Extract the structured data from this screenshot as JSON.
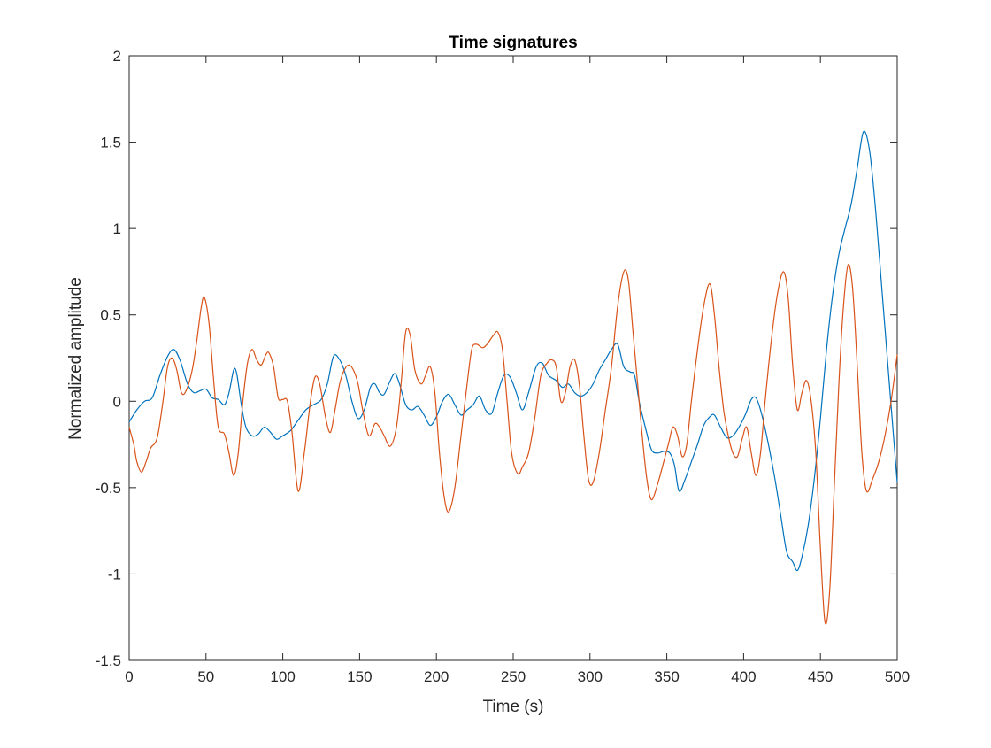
{
  "chart_data": {
    "type": "line",
    "title": "Time signatures",
    "xlabel": "Time (s)",
    "ylabel": "Normalized amplitude",
    "xlim": [
      0,
      500
    ],
    "ylim": [
      -1.5,
      2
    ],
    "xticks": [
      0,
      50,
      100,
      150,
      200,
      250,
      300,
      350,
      400,
      450,
      500
    ],
    "xtick_labels": [
      "0",
      "50",
      "100",
      "150",
      "200",
      "250",
      "300",
      "350",
      "400",
      "450",
      "500"
    ],
    "yticks": [
      -1.5,
      -1,
      -0.5,
      0,
      0.5,
      1,
      1.5,
      2
    ],
    "ytick_labels": [
      "-1.5",
      "-1",
      "-0.5",
      "0",
      "0.5",
      "1",
      "1.5",
      "2"
    ],
    "grid": false,
    "legend": "none",
    "series": [
      {
        "color": "#0072BD",
        "points": [
          [
            0,
            -0.12
          ],
          [
            5,
            -0.05
          ],
          [
            10,
            0.0
          ],
          [
            15,
            0.02
          ],
          [
            20,
            0.15
          ],
          [
            25,
            0.26
          ],
          [
            29,
            0.3
          ],
          [
            33,
            0.24
          ],
          [
            38,
            0.1
          ],
          [
            42,
            0.05
          ],
          [
            46,
            0.06
          ],
          [
            50,
            0.07
          ],
          [
            54,
            0.02
          ],
          [
            58,
            0.01
          ],
          [
            62,
            -0.02
          ],
          [
            65,
            0.05
          ],
          [
            68,
            0.18
          ],
          [
            70,
            0.16
          ],
          [
            73,
            -0.02
          ],
          [
            76,
            -0.15
          ],
          [
            80,
            -0.2
          ],
          [
            84,
            -0.19
          ],
          [
            88,
            -0.15
          ],
          [
            92,
            -0.18
          ],
          [
            96,
            -0.22
          ],
          [
            100,
            -0.2
          ],
          [
            105,
            -0.17
          ],
          [
            110,
            -0.11
          ],
          [
            115,
            -0.05
          ],
          [
            120,
            -0.02
          ],
          [
            125,
            0.01
          ],
          [
            129,
            0.1
          ],
          [
            133,
            0.26
          ],
          [
            137,
            0.24
          ],
          [
            141,
            0.15
          ],
          [
            145,
            0.0
          ],
          [
            149,
            -0.1
          ],
          [
            153,
            -0.05
          ],
          [
            157,
            0.08
          ],
          [
            160,
            0.1
          ],
          [
            163,
            0.05
          ],
          [
            166,
            0.04
          ],
          [
            170,
            0.12
          ],
          [
            173,
            0.16
          ],
          [
            176,
            0.1
          ],
          [
            180,
            -0.02
          ],
          [
            184,
            -0.05
          ],
          [
            188,
            -0.03
          ],
          [
            192,
            -0.08
          ],
          [
            196,
            -0.14
          ],
          [
            200,
            -0.09
          ],
          [
            204,
            0.0
          ],
          [
            208,
            0.04
          ],
          [
            212,
            -0.02
          ],
          [
            216,
            -0.08
          ],
          [
            220,
            -0.05
          ],
          [
            224,
            -0.02
          ],
          [
            228,
            0.03
          ],
          [
            232,
            -0.05
          ],
          [
            236,
            -0.07
          ],
          [
            240,
            0.05
          ],
          [
            244,
            0.15
          ],
          [
            248,
            0.14
          ],
          [
            252,
            0.05
          ],
          [
            256,
            -0.05
          ],
          [
            260,
            0.05
          ],
          [
            265,
            0.2
          ],
          [
            269,
            0.22
          ],
          [
            273,
            0.15
          ],
          [
            278,
            0.12
          ],
          [
            282,
            0.08
          ],
          [
            286,
            0.1
          ],
          [
            290,
            0.05
          ],
          [
            294,
            0.03
          ],
          [
            298,
            0.05
          ],
          [
            302,
            0.1
          ],
          [
            306,
            0.18
          ],
          [
            310,
            0.24
          ],
          [
            314,
            0.3
          ],
          [
            318,
            0.33
          ],
          [
            322,
            0.2
          ],
          [
            326,
            0.17
          ],
          [
            329,
            0.15
          ],
          [
            332,
            0.0
          ],
          [
            336,
            -0.15
          ],
          [
            340,
            -0.28
          ],
          [
            344,
            -0.3
          ],
          [
            348,
            -0.29
          ],
          [
            352,
            -0.3
          ],
          [
            355,
            -0.37
          ],
          [
            358,
            -0.52
          ],
          [
            362,
            -0.45
          ],
          [
            366,
            -0.35
          ],
          [
            370,
            -0.25
          ],
          [
            374,
            -0.14
          ],
          [
            378,
            -0.09
          ],
          [
            381,
            -0.08
          ],
          [
            385,
            -0.15
          ],
          [
            389,
            -0.21
          ],
          [
            393,
            -0.2
          ],
          [
            397,
            -0.15
          ],
          [
            401,
            -0.08
          ],
          [
            405,
            0.01
          ],
          [
            408,
            0.02
          ],
          [
            411,
            -0.05
          ],
          [
            415,
            -0.2
          ],
          [
            420,
            -0.43
          ],
          [
            424,
            -0.65
          ],
          [
            428,
            -0.87
          ],
          [
            432,
            -0.93
          ],
          [
            435,
            -0.98
          ],
          [
            438,
            -0.9
          ],
          [
            442,
            -0.72
          ],
          [
            446,
            -0.45
          ],
          [
            450,
            -0.1
          ],
          [
            454,
            0.3
          ],
          [
            458,
            0.62
          ],
          [
            462,
            0.85
          ],
          [
            466,
            1.0
          ],
          [
            470,
            1.14
          ],
          [
            474,
            1.35
          ],
          [
            478,
            1.56
          ],
          [
            482,
            1.45
          ],
          [
            486,
            1.1
          ],
          [
            490,
            0.65
          ],
          [
            494,
            0.2
          ],
          [
            498,
            -0.25
          ],
          [
            500,
            -0.47
          ]
        ]
      },
      {
        "color": "#D95319",
        "points": [
          [
            0,
            -0.15
          ],
          [
            3,
            -0.25
          ],
          [
            5,
            -0.35
          ],
          [
            8,
            -0.41
          ],
          [
            11,
            -0.35
          ],
          [
            14,
            -0.27
          ],
          [
            17,
            -0.24
          ],
          [
            19,
            -0.18
          ],
          [
            22,
            0.0
          ],
          [
            25,
            0.2
          ],
          [
            28,
            0.25
          ],
          [
            31,
            0.18
          ],
          [
            34,
            0.05
          ],
          [
            37,
            0.06
          ],
          [
            41,
            0.18
          ],
          [
            44,
            0.35
          ],
          [
            47,
            0.55
          ],
          [
            49,
            0.6
          ],
          [
            52,
            0.45
          ],
          [
            55,
            0.12
          ],
          [
            58,
            -0.15
          ],
          [
            62,
            -0.19
          ],
          [
            65,
            -0.3
          ],
          [
            68,
            -0.43
          ],
          [
            71,
            -0.3
          ],
          [
            74,
            0.0
          ],
          [
            77,
            0.22
          ],
          [
            80,
            0.3
          ],
          [
            83,
            0.24
          ],
          [
            86,
            0.21
          ],
          [
            89,
            0.27
          ],
          [
            91,
            0.28
          ],
          [
            94,
            0.2
          ],
          [
            97,
            0.02
          ],
          [
            100,
            0.01
          ],
          [
            103,
            0.0
          ],
          [
            106,
            -0.18
          ],
          [
            110,
            -0.52
          ],
          [
            114,
            -0.3
          ],
          [
            118,
            0.0
          ],
          [
            121,
            0.14
          ],
          [
            124,
            0.1
          ],
          [
            128,
            -0.1
          ],
          [
            131,
            -0.18
          ],
          [
            134,
            -0.05
          ],
          [
            137,
            0.1
          ],
          [
            140,
            0.18
          ],
          [
            143,
            0.21
          ],
          [
            146,
            0.18
          ],
          [
            149,
            0.1
          ],
          [
            152,
            -0.05
          ],
          [
            156,
            -0.2
          ],
          [
            160,
            -0.13
          ],
          [
            163,
            -0.15
          ],
          [
            166,
            -0.2
          ],
          [
            170,
            -0.26
          ],
          [
            174,
            -0.15
          ],
          [
            177,
            0.1
          ],
          [
            180,
            0.4
          ],
          [
            183,
            0.38
          ],
          [
            186,
            0.18
          ],
          [
            190,
            0.1
          ],
          [
            193,
            0.15
          ],
          [
            196,
            0.2
          ],
          [
            199,
            0.05
          ],
          [
            202,
            -0.3
          ],
          [
            205,
            -0.55
          ],
          [
            208,
            -0.64
          ],
          [
            212,
            -0.5
          ],
          [
            216,
            -0.2
          ],
          [
            220,
            0.1
          ],
          [
            223,
            0.3
          ],
          [
            226,
            0.33
          ],
          [
            230,
            0.31
          ],
          [
            233,
            0.33
          ],
          [
            237,
            0.38
          ],
          [
            240,
            0.4
          ],
          [
            243,
            0.3
          ],
          [
            246,
            0.0
          ],
          [
            249,
            -0.3
          ],
          [
            253,
            -0.42
          ],
          [
            256,
            -0.38
          ],
          [
            260,
            -0.3
          ],
          [
            264,
            -0.1
          ],
          [
            268,
            0.15
          ],
          [
            272,
            0.22
          ],
          [
            275,
            0.24
          ],
          [
            278,
            0.2
          ],
          [
            281,
            0.0
          ],
          [
            284,
            0.05
          ],
          [
            287,
            0.2
          ],
          [
            290,
            0.24
          ],
          [
            293,
            0.1
          ],
          [
            296,
            -0.2
          ],
          [
            299,
            -0.45
          ],
          [
            302,
            -0.47
          ],
          [
            306,
            -0.3
          ],
          [
            310,
            -0.05
          ],
          [
            314,
            0.2
          ],
          [
            318,
            0.55
          ],
          [
            322,
            0.75
          ],
          [
            325,
            0.7
          ],
          [
            328,
            0.4
          ],
          [
            331,
            0.1
          ],
          [
            334,
            -0.2
          ],
          [
            337,
            -0.45
          ],
          [
            340,
            -0.57
          ],
          [
            344,
            -0.48
          ],
          [
            348,
            -0.35
          ],
          [
            351,
            -0.25
          ],
          [
            354,
            -0.15
          ],
          [
            357,
            -0.2
          ],
          [
            360,
            -0.32
          ],
          [
            363,
            -0.25
          ],
          [
            366,
            0.0
          ],
          [
            370,
            0.3
          ],
          [
            374,
            0.55
          ],
          [
            378,
            0.68
          ],
          [
            381,
            0.5
          ],
          [
            384,
            0.2
          ],
          [
            387,
            -0.05
          ],
          [
            390,
            -0.2
          ],
          [
            393,
            -0.3
          ],
          [
            396,
            -0.32
          ],
          [
            399,
            -0.22
          ],
          [
            402,
            -0.15
          ],
          [
            405,
            -0.3
          ],
          [
            408,
            -0.43
          ],
          [
            411,
            -0.3
          ],
          [
            414,
            0.0
          ],
          [
            418,
            0.35
          ],
          [
            422,
            0.62
          ],
          [
            426,
            0.75
          ],
          [
            429,
            0.6
          ],
          [
            432,
            0.2
          ],
          [
            435,
            -0.05
          ],
          [
            438,
            0.05
          ],
          [
            441,
            0.12
          ],
          [
            444,
            0.0
          ],
          [
            447,
            -0.3
          ],
          [
            450,
            -0.85
          ],
          [
            453,
            -1.28
          ],
          [
            456,
            -1.1
          ],
          [
            459,
            -0.5
          ],
          [
            462,
            0.1
          ],
          [
            465,
            0.55
          ],
          [
            468,
            0.79
          ],
          [
            471,
            0.65
          ],
          [
            474,
            0.2
          ],
          [
            477,
            -0.3
          ],
          [
            480,
            -0.52
          ],
          [
            484,
            -0.45
          ],
          [
            488,
            -0.35
          ],
          [
            492,
            -0.2
          ],
          [
            496,
            0.0
          ],
          [
            500,
            0.27
          ]
        ]
      }
    ]
  }
}
